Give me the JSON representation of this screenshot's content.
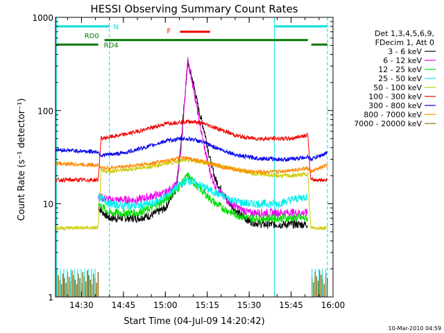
{
  "chart_data": {
    "type": "line",
    "title": "HESSI Observing Summary Count Rates",
    "xlabel": "Start Time (04-Jul-09 14:20:42)",
    "ylabel": "Count Rate (s⁻¹ detector⁻¹)",
    "yscale": "log",
    "ylim": [
      1,
      1000
    ],
    "xlim": [
      "14:20:42",
      "16:00:00"
    ],
    "x_ticks": [
      "14:30",
      "14:45",
      "15:00",
      "15:15",
      "15:30",
      "15:45",
      "16:00"
    ],
    "y_ticks": [
      "1",
      "10",
      "100",
      "1000"
    ],
    "legend_header": [
      "Det 1,3,4,5,6,9,",
      "FDecim 1, Att 0"
    ],
    "legend_position": "right",
    "timestamp": "10-Mar-2010 04:59",
    "annotations": [
      {
        "label": "N",
        "color": "#00e0e0",
        "segments": [
          [
            "14:20:42",
            "14:40:00"
          ],
          [
            "15:39:00",
            "15:58:00"
          ]
        ],
        "level": 800
      },
      {
        "label": "RD0",
        "color": "#007700",
        "segments": [
          [
            "14:38:00",
            "15:51:00"
          ]
        ],
        "level": 570
      },
      {
        "label": "RD4",
        "color": "#007700",
        "segments": [
          [
            "14:20:42",
            "14:36:00"
          ],
          [
            "15:52:00",
            "15:58:00"
          ]
        ],
        "level": 510
      },
      {
        "label": "F",
        "color": "#ee0000",
        "segments": [
          [
            "15:05:00",
            "15:16:00"
          ]
        ],
        "level": 700
      }
    ],
    "night_boundaries": [
      "14:20:42",
      "14:40:00",
      "15:39:00",
      "15:58:00"
    ],
    "series": [
      {
        "name": "3 - 6 keV",
        "color": "#000000",
        "points": [
          [
            "14:36:00",
            9
          ],
          [
            "14:40:00",
            7
          ],
          [
            "14:45:00",
            7
          ],
          [
            "14:50:00",
            7
          ],
          [
            "14:55:00",
            7.5
          ],
          [
            "15:00:00",
            9
          ],
          [
            "15:04:00",
            15
          ],
          [
            "15:06:00",
            60
          ],
          [
            "15:08:00",
            330
          ],
          [
            "15:10:00",
            200
          ],
          [
            "15:12:00",
            100
          ],
          [
            "15:14:00",
            60
          ],
          [
            "15:16:00",
            30
          ],
          [
            "15:18:00",
            18
          ],
          [
            "15:22:00",
            11
          ],
          [
            "15:26:00",
            8
          ],
          [
            "15:30:00",
            6.5
          ],
          [
            "15:35:00",
            6
          ],
          [
            "15:40:00",
            6
          ],
          [
            "15:45:00",
            6
          ],
          [
            "15:51:00",
            6
          ]
        ]
      },
      {
        "name": "6 - 12 keV",
        "color": "#ee00ee",
        "points": [
          [
            "14:36:00",
            12
          ],
          [
            "14:40:00",
            11
          ],
          [
            "14:45:00",
            11
          ],
          [
            "14:50:00",
            11
          ],
          [
            "14:55:00",
            12
          ],
          [
            "15:00:00",
            13
          ],
          [
            "15:04:00",
            16
          ],
          [
            "15:06:00",
            50
          ],
          [
            "15:08:00",
            350
          ],
          [
            "15:10:00",
            180
          ],
          [
            "15:12:00",
            80
          ],
          [
            "15:14:00",
            40
          ],
          [
            "15:16:00",
            22
          ],
          [
            "15:18:00",
            15
          ],
          [
            "15:22:00",
            11
          ],
          [
            "15:26:00",
            9
          ],
          [
            "15:30:00",
            8
          ],
          [
            "15:35:00",
            8
          ],
          [
            "15:40:00",
            8
          ],
          [
            "15:45:00",
            8
          ],
          [
            "15:51:00",
            8
          ]
        ]
      },
      {
        "name": "12 - 25 keV",
        "color": "#00dd00",
        "points": [
          [
            "14:36:00",
            10
          ],
          [
            "14:40:00",
            8
          ],
          [
            "14:45:00",
            8
          ],
          [
            "14:50:00",
            8
          ],
          [
            "14:55:00",
            9
          ],
          [
            "15:00:00",
            11
          ],
          [
            "15:04:00",
            14
          ],
          [
            "15:08:00",
            20
          ],
          [
            "15:10:00",
            17
          ],
          [
            "15:14:00",
            13
          ],
          [
            "15:18:00",
            10
          ],
          [
            "15:22:00",
            8.5
          ],
          [
            "15:26:00",
            7.5
          ],
          [
            "15:30:00",
            7
          ],
          [
            "15:35:00",
            7
          ],
          [
            "15:40:00",
            7
          ],
          [
            "15:45:00",
            7
          ],
          [
            "15:51:00",
            7
          ]
        ]
      },
      {
        "name": "25 - 50 keV",
        "color": "#00eeee",
        "points": [
          [
            "14:36:00",
            12
          ],
          [
            "14:40:00",
            10
          ],
          [
            "14:45:00",
            9.5
          ],
          [
            "14:50:00",
            9.5
          ],
          [
            "14:55:00",
            10
          ],
          [
            "15:00:00",
            12
          ],
          [
            "15:04:00",
            15
          ],
          [
            "15:08:00",
            18
          ],
          [
            "15:10:00",
            17
          ],
          [
            "15:14:00",
            15
          ],
          [
            "15:18:00",
            13
          ],
          [
            "15:22:00",
            11.5
          ],
          [
            "15:26:00",
            10.5
          ],
          [
            "15:30:00",
            10
          ],
          [
            "15:35:00",
            10
          ],
          [
            "15:40:00",
            10
          ],
          [
            "15:45:00",
            11
          ],
          [
            "15:51:00",
            12
          ]
        ]
      },
      {
        "name": "50 - 100 keV",
        "color": "#cccc00",
        "points": [
          [
            "14:20:42",
            5.5
          ],
          [
            "14:36:00",
            5.5
          ],
          [
            "14:37:00",
            22
          ],
          [
            "14:45:00",
            23
          ],
          [
            "14:55:00",
            25
          ],
          [
            "15:00:00",
            27
          ],
          [
            "15:06:00",
            29
          ],
          [
            "15:10:00",
            29
          ],
          [
            "15:16:00",
            27
          ],
          [
            "15:24:00",
            24
          ],
          [
            "15:32:00",
            21
          ],
          [
            "15:40:00",
            20
          ],
          [
            "15:46:00",
            20
          ],
          [
            "15:51:00",
            21
          ],
          [
            "15:52:00",
            5.5
          ],
          [
            "15:58:00",
            5.5
          ]
        ]
      },
      {
        "name": "100 - 300 keV",
        "color": "#ee0000",
        "points": [
          [
            "14:20:42",
            18
          ],
          [
            "14:36:00",
            18
          ],
          [
            "14:37:00",
            50
          ],
          [
            "14:45:00",
            55
          ],
          [
            "14:55:00",
            65
          ],
          [
            "15:00:00",
            72
          ],
          [
            "15:06:00",
            76
          ],
          [
            "15:10:00",
            76
          ],
          [
            "15:14:00",
            72
          ],
          [
            "15:20:00",
            62
          ],
          [
            "15:26:00",
            53
          ],
          [
            "15:32:00",
            50
          ],
          [
            "15:40:00",
            50
          ],
          [
            "15:45:00",
            50
          ],
          [
            "15:51:00",
            55
          ],
          [
            "15:52:00",
            18
          ],
          [
            "15:58:00",
            18
          ]
        ]
      },
      {
        "name": "300 - 800 keV",
        "color": "#0000ee",
        "points": [
          [
            "14:20:42",
            38
          ],
          [
            "14:36:00",
            36
          ],
          [
            "14:37:00",
            33
          ],
          [
            "14:45:00",
            35
          ],
          [
            "14:55:00",
            42
          ],
          [
            "15:00:00",
            47
          ],
          [
            "15:06:00",
            50
          ],
          [
            "15:10:00",
            49
          ],
          [
            "15:14:00",
            45
          ],
          [
            "15:20:00",
            38
          ],
          [
            "15:26:00",
            33
          ],
          [
            "15:32:00",
            31
          ],
          [
            "15:40:00",
            30
          ],
          [
            "15:45:00",
            30
          ],
          [
            "15:51:00",
            32
          ],
          [
            "15:52:00",
            30
          ],
          [
            "15:58:00",
            35
          ]
        ]
      },
      {
        "name": "800 - 7000 keV",
        "color": "#ff8800",
        "points": [
          [
            "14:20:42",
            27
          ],
          [
            "14:36:00",
            26
          ],
          [
            "14:37:00",
            24
          ],
          [
            "14:45:00",
            25
          ],
          [
            "14:55:00",
            27
          ],
          [
            "15:00:00",
            29
          ],
          [
            "15:06:00",
            31
          ],
          [
            "15:10:00",
            30
          ],
          [
            "15:14:00",
            28
          ],
          [
            "15:20:00",
            25
          ],
          [
            "15:26:00",
            23
          ],
          [
            "15:32:00",
            22
          ],
          [
            "15:40:00",
            22
          ],
          [
            "15:45:00",
            23
          ],
          [
            "15:51:00",
            24
          ],
          [
            "15:52:00",
            22
          ],
          [
            "15:58:00",
            26
          ]
        ]
      },
      {
        "name": "7000 - 20000 keV",
        "color": "#886600",
        "points": [
          [
            "14:20:42",
            1.7
          ],
          [
            "14:36:00",
            1.7
          ],
          [
            "15:52:00",
            1.7
          ],
          [
            "15:58:00",
            1.7
          ]
        ]
      }
    ]
  }
}
